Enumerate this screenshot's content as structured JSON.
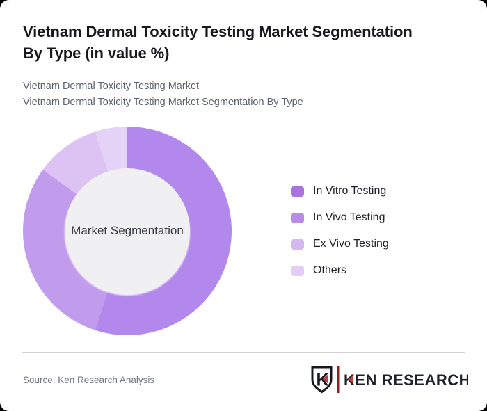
{
  "page": {
    "title_lines": [
      "Vietnam Dermal Toxicity Testing Market Segmentation",
      "By Type (in value %)"
    ],
    "subtitle_lines": [
      "Vietnam Dermal Toxicity Testing Market",
      "Vietnam Dermal Toxicity Testing Market Segmentation By Type"
    ]
  },
  "chart_data": {
    "type": "pie",
    "variant": "donut",
    "title": "Vietnam Dermal Toxicity Testing Market Segmentation By Type (in value %)",
    "unit": "value %",
    "center_label": "Market Segmentation",
    "start_angle_deg": 0,
    "direction": "clockwise",
    "hole_ratio": 0.6,
    "hole_color": "#f0eff1",
    "legend_position": "right",
    "segments": [
      {
        "label": "In Vitro Testing",
        "value": 55,
        "color": "#b288ed",
        "legend_color": "#a973dd"
      },
      {
        "label": "In Vivo Testing",
        "value": 30,
        "color": "#c19ced",
        "legend_color": "#b98ae6"
      },
      {
        "label": "Ex Vivo Testing",
        "value": 10,
        "color": "#dcc3f3",
        "legend_color": "#d6b8f1"
      },
      {
        "label": "Others",
        "value": 5,
        "color": "#e4d3f7",
        "legend_color": "#e2cdf6"
      }
    ]
  },
  "footer": {
    "source": "Source: Ken Research Analysis",
    "logo_monogram": "K",
    "logo_text": "KEN RESEARCH"
  },
  "theme": {
    "card_background": "#ffffff",
    "page_behind": "#000000",
    "title_color": "#17191d",
    "subtitle_color": "#5c626c",
    "divider_color": "#d2d2d2",
    "logo_red": "#c2413b",
    "logo_bar_maroon": "#8b201c",
    "logo_dark": "#1d2026"
  }
}
